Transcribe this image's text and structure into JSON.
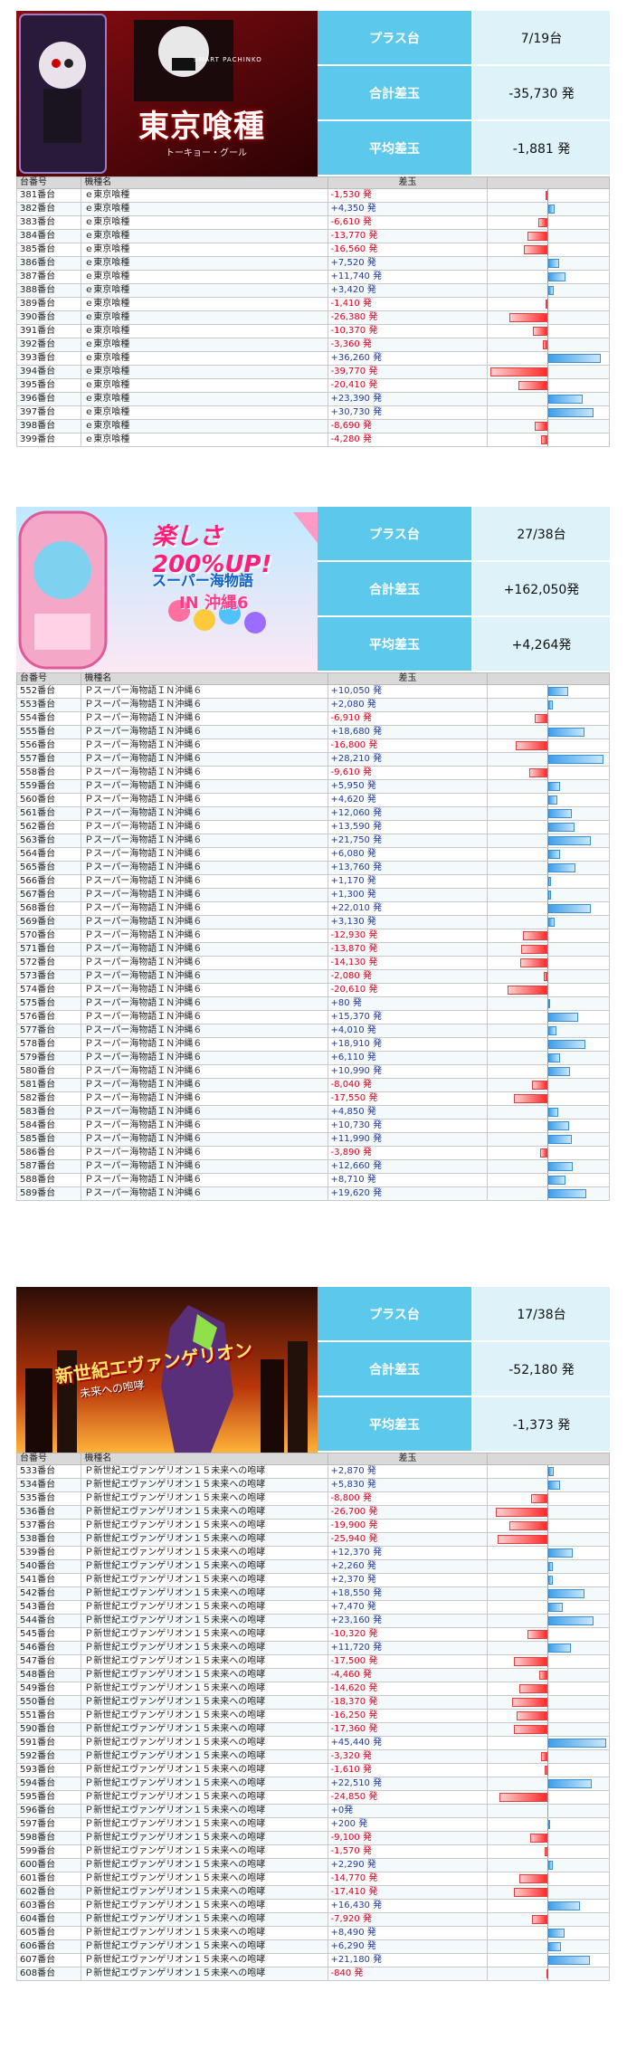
{
  "sections": [
    {
      "banner": {
        "top_text": "SMART PACHINKO",
        "title": "東京喰種",
        "sub": "トーキョー・グール",
        "theme": "ghoul"
      },
      "stats": [
        {
          "label": "プラス台",
          "value": "7/19台"
        },
        {
          "label": "合計差玉",
          "value": "-35,730 発"
        },
        {
          "label": "平均差玉",
          "value": "-1,881 発"
        }
      ],
      "columns": [
        "台番号",
        "機種名",
        "差玉"
      ],
      "max_abs": 40000,
      "rows": [
        {
          "num": "381番台",
          "name": "ｅ東京喰種",
          "diff": -1530,
          "label": "-1,530 発"
        },
        {
          "num": "382番台",
          "name": "ｅ東京喰種",
          "diff": 4350,
          "label": "+4,350 発"
        },
        {
          "num": "383番台",
          "name": "ｅ東京喰種",
          "diff": -6610,
          "label": "-6,610 発"
        },
        {
          "num": "384番台",
          "name": "ｅ東京喰種",
          "diff": -13770,
          "label": "-13,770 発"
        },
        {
          "num": "385番台",
          "name": "ｅ東京喰種",
          "diff": -16560,
          "label": "-16,560 発"
        },
        {
          "num": "386番台",
          "name": "ｅ東京喰種",
          "diff": 7520,
          "label": "+7,520 発"
        },
        {
          "num": "387番台",
          "name": "ｅ東京喰種",
          "diff": 11740,
          "label": "+11,740 発"
        },
        {
          "num": "388番台",
          "name": "ｅ東京喰種",
          "diff": 3420,
          "label": "+3,420 発"
        },
        {
          "num": "389番台",
          "name": "ｅ東京喰種",
          "diff": -1410,
          "label": "-1,410 発"
        },
        {
          "num": "390番台",
          "name": "ｅ東京喰種",
          "diff": -26380,
          "label": "-26,380 発"
        },
        {
          "num": "391番台",
          "name": "ｅ東京喰種",
          "diff": -10370,
          "label": "-10,370 発"
        },
        {
          "num": "392番台",
          "name": "ｅ東京喰種",
          "diff": -3360,
          "label": "-3,360 発"
        },
        {
          "num": "393番台",
          "name": "ｅ東京喰種",
          "diff": 36260,
          "label": "+36,260 発"
        },
        {
          "num": "394番台",
          "name": "ｅ東京喰種",
          "diff": -39770,
          "label": "-39,770 発"
        },
        {
          "num": "395番台",
          "name": "ｅ東京喰種",
          "diff": -20410,
          "label": "-20,410 発"
        },
        {
          "num": "396番台",
          "name": "ｅ東京喰種",
          "diff": 23390,
          "label": "+23,390 発"
        },
        {
          "num": "397番台",
          "name": "ｅ東京喰種",
          "diff": 30730,
          "label": "+30,730 発"
        },
        {
          "num": "398番台",
          "name": "ｅ東京喰種",
          "diff": -8690,
          "label": "-8,690 発"
        },
        {
          "num": "399番台",
          "name": "ｅ東京喰種",
          "diff": -4280,
          "label": "-4,280 発"
        }
      ]
    },
    {
      "banner": {
        "top_text": "楽しさ200%UP!",
        "title": "スーパー海物語",
        "sub": "IN 沖縄6",
        "theme": "umi"
      },
      "stats": [
        {
          "label": "プラス台",
          "value": "27/38台"
        },
        {
          "label": "合計差玉",
          "value": "+162,050発"
        },
        {
          "label": "平均差玉",
          "value": "+4,264発"
        }
      ],
      "columns": [
        "台番号",
        "機種名",
        "差玉"
      ],
      "max_abs": 30000,
      "rows": [
        {
          "num": "552番台",
          "name": "Ｐスーパー海物語ＩＮ沖縄６",
          "diff": 10050,
          "label": "+10,050 発"
        },
        {
          "num": "553番台",
          "name": "Ｐスーパー海物語ＩＮ沖縄６",
          "diff": 2080,
          "label": "+2,080 発"
        },
        {
          "num": "554番台",
          "name": "Ｐスーパー海物語ＩＮ沖縄６",
          "diff": -6910,
          "label": "-6,910 発"
        },
        {
          "num": "555番台",
          "name": "Ｐスーパー海物語ＩＮ沖縄６",
          "diff": 18680,
          "label": "+18,680 発"
        },
        {
          "num": "556番台",
          "name": "Ｐスーパー海物語ＩＮ沖縄６",
          "diff": -16800,
          "label": "-16,800 発"
        },
        {
          "num": "557番台",
          "name": "Ｐスーパー海物語ＩＮ沖縄６",
          "diff": 28210,
          "label": "+28,210 発"
        },
        {
          "num": "558番台",
          "name": "Ｐスーパー海物語ＩＮ沖縄６",
          "diff": -9610,
          "label": "-9,610 発"
        },
        {
          "num": "559番台",
          "name": "Ｐスーパー海物語ＩＮ沖縄６",
          "diff": 5950,
          "label": "+5,950 発"
        },
        {
          "num": "560番台",
          "name": "Ｐスーパー海物語ＩＮ沖縄６",
          "diff": 4620,
          "label": "+4,620 発"
        },
        {
          "num": "561番台",
          "name": "Ｐスーパー海物語ＩＮ沖縄６",
          "diff": 12060,
          "label": "+12,060 発"
        },
        {
          "num": "562番台",
          "name": "Ｐスーパー海物語ＩＮ沖縄６",
          "diff": 13590,
          "label": "+13,590 発"
        },
        {
          "num": "563番台",
          "name": "Ｐスーパー海物語ＩＮ沖縄６",
          "diff": 21750,
          "label": "+21,750 発"
        },
        {
          "num": "564番台",
          "name": "Ｐスーパー海物語ＩＮ沖縄６",
          "diff": 6080,
          "label": "+6,080 発"
        },
        {
          "num": "565番台",
          "name": "Ｐスーパー海物語ＩＮ沖縄６",
          "diff": 13760,
          "label": "+13,760 発"
        },
        {
          "num": "566番台",
          "name": "Ｐスーパー海物語ＩＮ沖縄６",
          "diff": 1170,
          "label": "+1,170 発"
        },
        {
          "num": "567番台",
          "name": "Ｐスーパー海物語ＩＮ沖縄６",
          "diff": 1300,
          "label": "+1,300 発"
        },
        {
          "num": "568番台",
          "name": "Ｐスーパー海物語ＩＮ沖縄６",
          "diff": 22010,
          "label": "+22,010 発"
        },
        {
          "num": "569番台",
          "name": "Ｐスーパー海物語ＩＮ沖縄６",
          "diff": 3130,
          "label": "+3,130 発"
        },
        {
          "num": "570番台",
          "name": "Ｐスーパー海物語ＩＮ沖縄６",
          "diff": -12930,
          "label": "-12,930 発"
        },
        {
          "num": "571番台",
          "name": "Ｐスーパー海物語ＩＮ沖縄６",
          "diff": -13870,
          "label": "-13,870 発"
        },
        {
          "num": "572番台",
          "name": "Ｐスーパー海物語ＩＮ沖縄６",
          "diff": -14130,
          "label": "-14,130 発"
        },
        {
          "num": "573番台",
          "name": "Ｐスーパー海物語ＩＮ沖縄６",
          "diff": -2080,
          "label": "-2,080 発"
        },
        {
          "num": "574番台",
          "name": "Ｐスーパー海物語ＩＮ沖縄６",
          "diff": -20610,
          "label": "-20,610 発"
        },
        {
          "num": "575番台",
          "name": "Ｐスーパー海物語ＩＮ沖縄６",
          "diff": 80,
          "label": "+80 発"
        },
        {
          "num": "576番台",
          "name": "Ｐスーパー海物語ＩＮ沖縄６",
          "diff": 15370,
          "label": "+15,370 発"
        },
        {
          "num": "577番台",
          "name": "Ｐスーパー海物語ＩＮ沖縄６",
          "diff": 4010,
          "label": "+4,010 発"
        },
        {
          "num": "578番台",
          "name": "Ｐスーパー海物語ＩＮ沖縄６",
          "diff": 18910,
          "label": "+18,910 発"
        },
        {
          "num": "579番台",
          "name": "Ｐスーパー海物語ＩＮ沖縄６",
          "diff": 6110,
          "label": "+6,110 発"
        },
        {
          "num": "580番台",
          "name": "Ｐスーパー海物語ＩＮ沖縄６",
          "diff": 10990,
          "label": "+10,990 発"
        },
        {
          "num": "581番台",
          "name": "Ｐスーパー海物語ＩＮ沖縄６",
          "diff": -8040,
          "label": "-8,040 発"
        },
        {
          "num": "582番台",
          "name": "Ｐスーパー海物語ＩＮ沖縄６",
          "diff": -17550,
          "label": "-17,550 発"
        },
        {
          "num": "583番台",
          "name": "Ｐスーパー海物語ＩＮ沖縄６",
          "diff": 4850,
          "label": "+4,850 発"
        },
        {
          "num": "584番台",
          "name": "Ｐスーパー海物語ＩＮ沖縄６",
          "diff": 10730,
          "label": "+10,730 発"
        },
        {
          "num": "585番台",
          "name": "Ｐスーパー海物語ＩＮ沖縄６",
          "diff": 11990,
          "label": "+11,990 発"
        },
        {
          "num": "586番台",
          "name": "Ｐスーパー海物語ＩＮ沖縄６",
          "diff": -3890,
          "label": "-3,890 発"
        },
        {
          "num": "587番台",
          "name": "Ｐスーパー海物語ＩＮ沖縄６",
          "diff": 12660,
          "label": "+12,660 発"
        },
        {
          "num": "588番台",
          "name": "Ｐスーパー海物語ＩＮ沖縄６",
          "diff": 8710,
          "label": "+8,710 発"
        },
        {
          "num": "589番台",
          "name": "Ｐスーパー海物語ＩＮ沖縄６",
          "diff": 19620,
          "label": "+19,620 発"
        }
      ]
    },
    {
      "banner": {
        "top_text": "",
        "title": "新世紀エヴァンゲリオン",
        "sub": "未来への咆哮",
        "theme": "eva"
      },
      "stats": [
        {
          "label": "プラス台",
          "value": "17/38台"
        },
        {
          "label": "合計差玉",
          "value": "-52,180 発"
        },
        {
          "label": "平均差玉",
          "value": "-1,373 発"
        }
      ],
      "columns": [
        "台番号",
        "機種名",
        "差玉"
      ],
      "max_abs": 30000,
      "rows": [
        {
          "num": "533番台",
          "name": "Ｐ新世紀エヴァンゲリオン１５未来への咆哮",
          "diff": 2870,
          "label": "+2,870 発"
        },
        {
          "num": "534番台",
          "name": "Ｐ新世紀エヴァンゲリオン１５未来への咆哮",
          "diff": 5830,
          "label": "+5,830 発"
        },
        {
          "num": "535番台",
          "name": "Ｐ新世紀エヴァンゲリオン１５未来への咆哮",
          "diff": -8800,
          "label": "-8,800 発"
        },
        {
          "num": "536番台",
          "name": "Ｐ新世紀エヴァンゲリオン１５未来への咆哮",
          "diff": -26700,
          "label": "-26,700 発"
        },
        {
          "num": "537番台",
          "name": "Ｐ新世紀エヴァンゲリオン１５未来への咆哮",
          "diff": -19900,
          "label": "-19,900 発"
        },
        {
          "num": "538番台",
          "name": "Ｐ新世紀エヴァンゲリオン１５未来への咆哮",
          "diff": -25940,
          "label": "-25,940 発"
        },
        {
          "num": "539番台",
          "name": "Ｐ新世紀エヴァンゲリオン１５未来への咆哮",
          "diff": 12370,
          "label": "+12,370 発"
        },
        {
          "num": "540番台",
          "name": "Ｐ新世紀エヴァンゲリオン１５未来への咆哮",
          "diff": 2260,
          "label": "+2,260 発"
        },
        {
          "num": "541番台",
          "name": "Ｐ新世紀エヴァンゲリオン１５未来への咆哮",
          "diff": 2370,
          "label": "+2,370 発"
        },
        {
          "num": "542番台",
          "name": "Ｐ新世紀エヴァンゲリオン１５未来への咆哮",
          "diff": 18550,
          "label": "+18,550 発"
        },
        {
          "num": "543番台",
          "name": "Ｐ新世紀エヴァンゲリオン１５未来への咆哮",
          "diff": 7470,
          "label": "+7,470 発"
        },
        {
          "num": "544番台",
          "name": "Ｐ新世紀エヴァンゲリオン１５未来への咆哮",
          "diff": 23160,
          "label": "+23,160 発"
        },
        {
          "num": "545番台",
          "name": "Ｐ新世紀エヴァンゲリオン１５未来への咆哮",
          "diff": -10320,
          "label": "-10,320 発"
        },
        {
          "num": "546番台",
          "name": "Ｐ新世紀エヴァンゲリオン１５未来への咆哮",
          "diff": 11720,
          "label": "+11,720 発"
        },
        {
          "num": "547番台",
          "name": "Ｐ新世紀エヴァンゲリオン１５未来への咆哮",
          "diff": -17500,
          "label": "-17,500 発"
        },
        {
          "num": "548番台",
          "name": "Ｐ新世紀エヴァンゲリオン１５未来への咆哮",
          "diff": -4460,
          "label": "-4,460 発"
        },
        {
          "num": "549番台",
          "name": "Ｐ新世紀エヴァンゲリオン１５未来への咆哮",
          "diff": -14620,
          "label": "-14,620 発"
        },
        {
          "num": "550番台",
          "name": "Ｐ新世紀エヴァンゲリオン１５未来への咆哮",
          "diff": -18370,
          "label": "-18,370 発"
        },
        {
          "num": "551番台",
          "name": "Ｐ新世紀エヴァンゲリオン１５未来への咆哮",
          "diff": -16250,
          "label": "-16,250 発"
        },
        {
          "num": "590番台",
          "name": "Ｐ新世紀エヴァンゲリオン１５未来への咆哮",
          "diff": -17360,
          "label": "-17,360 発"
        },
        {
          "num": "591番台",
          "name": "Ｐ新世紀エヴァンゲリオン１５未来への咆哮",
          "diff": 45440,
          "label": "+45,440 発"
        },
        {
          "num": "592番台",
          "name": "Ｐ新世紀エヴァンゲリオン１５未来への咆哮",
          "diff": -3320,
          "label": "-3,320 発"
        },
        {
          "num": "593番台",
          "name": "Ｐ新世紀エヴァンゲリオン１５未来への咆哮",
          "diff": -1610,
          "label": "-1,610 発"
        },
        {
          "num": "594番台",
          "name": "Ｐ新世紀エヴァンゲリオン１５未来への咆哮",
          "diff": 22510,
          "label": "+22,510 発"
        },
        {
          "num": "595番台",
          "name": "Ｐ新世紀エヴァンゲリオン１５未来への咆哮",
          "diff": -24850,
          "label": "-24,850 発"
        },
        {
          "num": "596番台",
          "name": "Ｐ新世紀エヴァンゲリオン１５未来への咆哮",
          "diff": 0,
          "label": "+0発"
        },
        {
          "num": "597番台",
          "name": "Ｐ新世紀エヴァンゲリオン１５未来への咆哮",
          "diff": 200,
          "label": "+200 発"
        },
        {
          "num": "598番台",
          "name": "Ｐ新世紀エヴァンゲリオン１５未来への咆哮",
          "diff": -9100,
          "label": "-9,100 発"
        },
        {
          "num": "599番台",
          "name": "Ｐ新世紀エヴァンゲリオン１５未来への咆哮",
          "diff": -1570,
          "label": "-1,570 発"
        },
        {
          "num": "600番台",
          "name": "Ｐ新世紀エヴァンゲリオン１５未来への咆哮",
          "diff": 2290,
          "label": "+2,290 発"
        },
        {
          "num": "601番台",
          "name": "Ｐ新世紀エヴァンゲリオン１５未来への咆哮",
          "diff": -14770,
          "label": "-14,770 発"
        },
        {
          "num": "602番台",
          "name": "Ｐ新世紀エヴァンゲリオン１５未来への咆哮",
          "diff": -17410,
          "label": "-17,410 発"
        },
        {
          "num": "603番台",
          "name": "Ｐ新世紀エヴァンゲリオン１５未来への咆哮",
          "diff": 16430,
          "label": "+16,430 発"
        },
        {
          "num": "604番台",
          "name": "Ｐ新世紀エヴァンゲリオン１５未来への咆哮",
          "diff": -7920,
          "label": "-7,920 発"
        },
        {
          "num": "605番台",
          "name": "Ｐ新世紀エヴァンゲリオン１５未来への咆哮",
          "diff": 8490,
          "label": "+8,490 発"
        },
        {
          "num": "606番台",
          "name": "Ｐ新世紀エヴァンゲリオン１５未来への咆哮",
          "diff": 6290,
          "label": "+6,290 発"
        },
        {
          "num": "607番台",
          "name": "Ｐ新世紀エヴァンゲリオン１５未来への咆哮",
          "diff": 21180,
          "label": "+21,180 発"
        },
        {
          "num": "608番台",
          "name": "Ｐ新世紀エヴァンゲリオン１５未来への咆哮",
          "diff": -840,
          "label": "-840 発"
        }
      ]
    }
  ],
  "chart_data": [
    {
      "type": "bar",
      "categories": [
        "381",
        "382",
        "383",
        "384",
        "385",
        "386",
        "387",
        "388",
        "389",
        "390",
        "391",
        "392",
        "393",
        "394",
        "395",
        "396",
        "397",
        "398",
        "399"
      ],
      "values": [
        -1530,
        4350,
        -6610,
        -13770,
        -16560,
        7520,
        11740,
        3420,
        -1410,
        -26380,
        -10370,
        -3360,
        36260,
        -39770,
        -20410,
        23390,
        30730,
        -8690,
        -4280
      ]
    },
    {
      "type": "bar",
      "categories": [
        "552",
        "553",
        "554",
        "555",
        "556",
        "557",
        "558",
        "559",
        "560",
        "561",
        "562",
        "563",
        "564",
        "565",
        "566",
        "567",
        "568",
        "569",
        "570",
        "571",
        "572",
        "573",
        "574",
        "575",
        "576",
        "577",
        "578",
        "579",
        "580",
        "581",
        "582",
        "583",
        "584",
        "585",
        "586",
        "587",
        "588",
        "589"
      ],
      "values": [
        10050,
        2080,
        -6910,
        18680,
        -16800,
        28210,
        -9610,
        5950,
        4620,
        12060,
        13590,
        21750,
        6080,
        13760,
        1170,
        1300,
        22010,
        3130,
        -12930,
        -13870,
        -14130,
        -2080,
        -20610,
        80,
        15370,
        4010,
        18910,
        6110,
        10990,
        -8040,
        -17550,
        4850,
        10730,
        11990,
        -3890,
        12660,
        8710,
        19620
      ]
    },
    {
      "type": "bar",
      "categories": [
        "533",
        "534",
        "535",
        "536",
        "537",
        "538",
        "539",
        "540",
        "541",
        "542",
        "543",
        "544",
        "545",
        "546",
        "547",
        "548",
        "549",
        "550",
        "551",
        "590",
        "591",
        "592",
        "593",
        "594",
        "595",
        "596",
        "597",
        "598",
        "599",
        "600",
        "601",
        "602",
        "603",
        "604",
        "605",
        "606",
        "607",
        "608"
      ],
      "values": [
        2870,
        5830,
        -8800,
        -26700,
        -19900,
        -25940,
        12370,
        2260,
        2370,
        18550,
        7470,
        23160,
        -10320,
        11720,
        -17500,
        -4460,
        -14620,
        -18370,
        -16250,
        -17360,
        45440,
        -3320,
        -1610,
        22510,
        -24850,
        0,
        200,
        -9100,
        -1570,
        2290,
        -14770,
        -17410,
        16430,
        -7920,
        8490,
        6290,
        21180,
        -840
      ]
    }
  ]
}
